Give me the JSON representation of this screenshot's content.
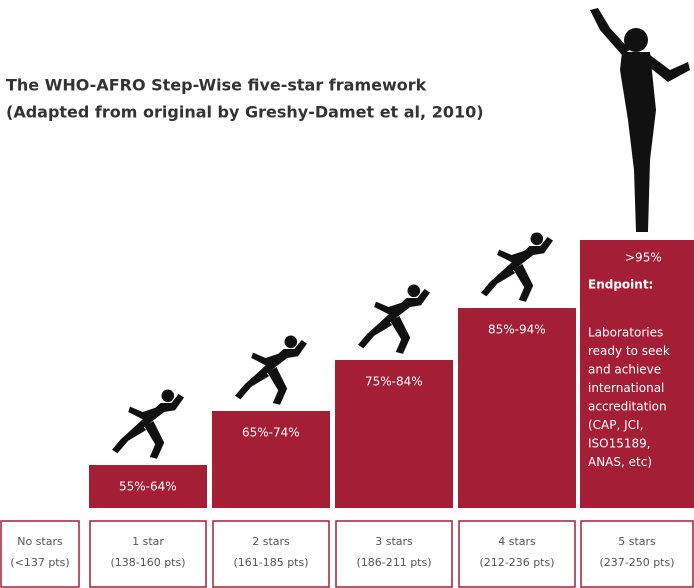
{
  "title": [
    "The WHO-AFRO Step-Wise five-star framework",
    "(Adapted from original by Greshy-Damet et al, 2010)"
  ],
  "steps": [
    "55%-64%",
    "65%-74%",
    "75%-84%",
    "85%-94%"
  ],
  "endpoint": {
    "percent": ">95%",
    "heading": "Endpoint:",
    "description": [
      "Laboratories",
      "ready to seek",
      "and achieve",
      "international",
      "accreditation",
      "(CAP, JCI,",
      "ISO15189,",
      "ANAS, etc)"
    ]
  },
  "stars": [
    {
      "label": "No stars",
      "points": "(<137 pts)"
    },
    {
      "label": "1 star",
      "points": "(138-160 pts)"
    },
    {
      "label": "2 stars",
      "points": "(161-185 pts)"
    },
    {
      "label": "3 stars",
      "points": "(186-211 pts)"
    },
    {
      "label": "4 stars",
      "points": "(212-236 pts)"
    },
    {
      "label": "5 stars",
      "points": "(237-250 pts)"
    }
  ]
}
